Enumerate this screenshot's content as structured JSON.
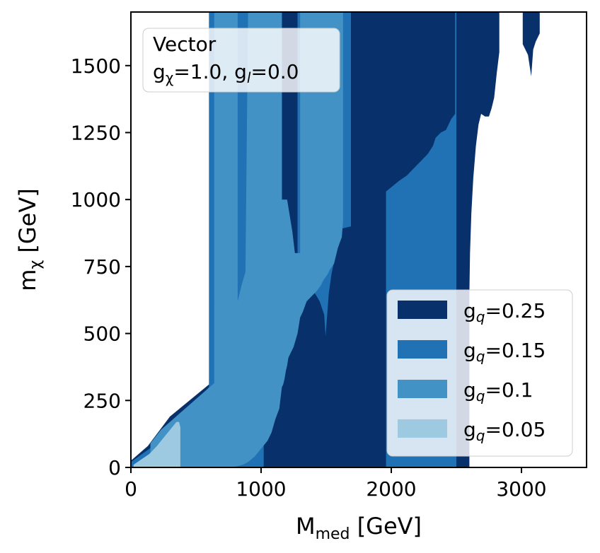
{
  "chart_data": {
    "type": "area",
    "xlabel": "M",
    "xlabel_sub": "med",
    "xlabel_unit": " [GeV]",
    "ylabel": "m",
    "ylabel_sub": "χ",
    "ylabel_unit": " [GeV]",
    "xlim": [
      0,
      3500
    ],
    "ylim": [
      0,
      1700
    ],
    "xticks": [
      0,
      1000,
      2000,
      3000
    ],
    "xtick_labels": [
      "0",
      "1000",
      "2000",
      "3000"
    ],
    "yticks": [
      0,
      250,
      500,
      750,
      1000,
      1250,
      1500
    ],
    "ytick_labels": [
      "0",
      "250",
      "500",
      "750",
      "1000",
      "1250",
      "1500"
    ],
    "grid": false,
    "legend_position": "lower-right",
    "annotation": {
      "line1": "Vector",
      "line2_g1": "g",
      "line2_s1": "χ",
      "line2_v1": "=1.0, ",
      "line2_g2": "g",
      "line2_s2": "l",
      "line2_v2": "=0.0"
    },
    "series": [
      {
        "name_main": "g",
        "name_sub": "q",
        "name_val": "=0.25",
        "color": "#08306b",
        "polygon": [
          [
            0,
            25
          ],
          [
            130,
            80
          ],
          [
            300,
            190
          ],
          [
            600,
            310
          ],
          [
            600,
            1700
          ],
          [
            2830,
            1700
          ],
          [
            2830,
            1550
          ],
          [
            2810,
            1470
          ],
          [
            2790,
            1380
          ],
          [
            2770,
            1340
          ],
          [
            2750,
            1310
          ],
          [
            2720,
            1310
          ],
          [
            2690,
            1320
          ],
          [
            2670,
            1280
          ],
          [
            2650,
            1200
          ],
          [
            2630,
            1080
          ],
          [
            2615,
            950
          ],
          [
            2605,
            800
          ],
          [
            2600,
            650
          ],
          [
            2600,
            0
          ],
          [
            0,
            0
          ]
        ]
      },
      {
        "name_main": "g",
        "name_sub": "q",
        "name_val": "=0.25",
        "color": "#08306b",
        "legend": false,
        "polygon": [
          [
            3010,
            1700
          ],
          [
            3140,
            1700
          ],
          [
            3140,
            1620
          ],
          [
            3110,
            1590
          ],
          [
            3090,
            1560
          ],
          [
            3075,
            1460
          ],
          [
            3050,
            1540
          ],
          [
            3010,
            1580
          ]
        ]
      },
      {
        "name_main": "g",
        "name_sub": "q",
        "name_val": "=0.15",
        "color": "#2171b5",
        "polygon": [
          [
            0,
            0
          ],
          [
            0,
            20
          ],
          [
            230,
            100
          ],
          [
            600,
            300
          ],
          [
            600,
            1700
          ],
          [
            1160,
            1700
          ],
          [
            1160,
            700
          ],
          [
            1280,
            700
          ],
          [
            1280,
            1700
          ],
          [
            1690,
            1700
          ],
          [
            1690,
            900
          ],
          [
            1610,
            890
          ],
          [
            1570,
            790
          ],
          [
            1540,
            720
          ],
          [
            1520,
            650
          ],
          [
            1505,
            550
          ],
          [
            1495,
            490
          ],
          [
            1485,
            570
          ],
          [
            1450,
            620
          ],
          [
            1420,
            645
          ],
          [
            1380,
            670
          ],
          [
            1340,
            660
          ],
          [
            1320,
            645
          ],
          [
            1300,
            625
          ],
          [
            1180,
            600
          ],
          [
            1100,
            580
          ],
          [
            1080,
            570
          ],
          [
            1050,
            545
          ],
          [
            1025,
            500
          ],
          [
            1020,
            450
          ],
          [
            1020,
            0
          ],
          [
            1960,
            0
          ],
          [
            1960,
            1030
          ],
          [
            2060,
            1070
          ],
          [
            2120,
            1090
          ],
          [
            2160,
            1110
          ],
          [
            2200,
            1130
          ],
          [
            2240,
            1150
          ],
          [
            2280,
            1170
          ],
          [
            2320,
            1200
          ],
          [
            2340,
            1230
          ],
          [
            2380,
            1250
          ],
          [
            2420,
            1260
          ],
          [
            2460,
            1300
          ],
          [
            2490,
            1320
          ],
          [
            2490,
            1700
          ],
          [
            2500,
            1700
          ],
          [
            2500,
            0
          ]
        ]
      },
      {
        "name_main": "g",
        "name_sub": "q",
        "name_val": "=0.1",
        "color": "#4292c6",
        "polygon": [
          [
            150,
            0
          ],
          [
            150,
            90
          ],
          [
            230,
            140
          ],
          [
            640,
            315
          ],
          [
            640,
            1700
          ],
          [
            820,
            1700
          ],
          [
            820,
            620
          ],
          [
            850,
            680
          ],
          [
            880,
            730
          ],
          [
            900,
            1700
          ],
          [
            1160,
            1700
          ],
          [
            1160,
            1000
          ],
          [
            1200,
            1000
          ],
          [
            1240,
            880
          ],
          [
            1260,
            800
          ],
          [
            1300,
            800
          ],
          [
            1300,
            1700
          ],
          [
            1630,
            1700
          ],
          [
            1630,
            920
          ],
          [
            1620,
            860
          ],
          [
            1590,
            820
          ],
          [
            1560,
            760
          ],
          [
            1530,
            740
          ],
          [
            1510,
            720
          ],
          [
            1480,
            700
          ],
          [
            1460,
            680
          ],
          [
            1430,
            660
          ],
          [
            1350,
            620
          ],
          [
            1320,
            580
          ],
          [
            1300,
            560
          ],
          [
            1280,
            500
          ],
          [
            1250,
            450
          ],
          [
            1230,
            430
          ],
          [
            1210,
            410
          ],
          [
            1200,
            380
          ],
          [
            1190,
            360
          ],
          [
            1180,
            330
          ],
          [
            1170,
            310
          ],
          [
            1160,
            300
          ],
          [
            1150,
            260
          ],
          [
            1140,
            220
          ],
          [
            1110,
            180
          ],
          [
            1080,
            130
          ],
          [
            1050,
            100
          ],
          [
            1000,
            70
          ],
          [
            950,
            40
          ],
          [
            900,
            20
          ],
          [
            860,
            10
          ],
          [
            820,
            5
          ],
          [
            760,
            0
          ]
        ]
      },
      {
        "name_main": "g",
        "name_sub": "q",
        "name_val": "=0.05",
        "color": "#9ecae1",
        "polygon": [
          [
            20,
            10
          ],
          [
            80,
            30
          ],
          [
            140,
            50
          ],
          [
            200,
            80
          ],
          [
            250,
            110
          ],
          [
            300,
            140
          ],
          [
            350,
            170
          ],
          [
            370,
            170
          ],
          [
            380,
            150
          ],
          [
            380,
            0
          ],
          [
            20,
            0
          ]
        ]
      }
    ]
  }
}
